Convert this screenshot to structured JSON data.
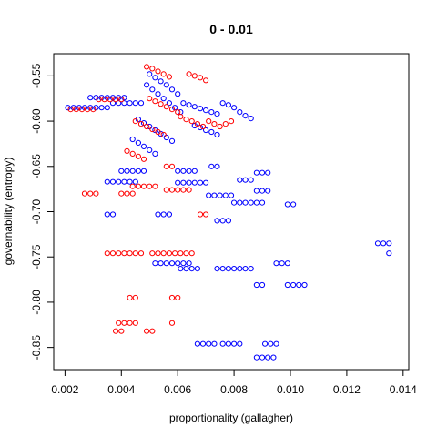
{
  "chart_data": {
    "type": "scatter",
    "title": "0 - 0.01",
    "xlabel": "proportionality (gallagher)",
    "ylabel": "governability (entropy)",
    "xlim": [
      0.0016,
      0.0142
    ],
    "ylim": [
      -0.8745,
      -0.5255
    ],
    "x_ticks": [
      "0.002",
      "0.004",
      "0.006",
      "0.008",
      "0.010",
      "0.012",
      "0.014"
    ],
    "x_tick_values": [
      0.002,
      0.004,
      0.006,
      0.008,
      0.01,
      0.012,
      0.014
    ],
    "y_ticks": [
      "-0.55",
      "-0.60",
      "-0.65",
      "-0.70",
      "-0.75",
      "-0.80",
      "-0.85"
    ],
    "y_tick_values": [
      -0.55,
      -0.6,
      -0.65,
      -0.7,
      -0.75,
      -0.8,
      -0.85
    ],
    "marker": "open-circle",
    "grid": false,
    "series": [
      {
        "color": "#0000ff",
        "points": [
          [
            0.0021,
            -0.585
          ],
          [
            0.0023,
            -0.585
          ],
          [
            0.0025,
            -0.585
          ],
          [
            0.0027,
            -0.585
          ],
          [
            0.0029,
            -0.585
          ],
          [
            0.0031,
            -0.585
          ],
          [
            0.0033,
            -0.585
          ],
          [
            0.0035,
            -0.585
          ],
          [
            0.0029,
            -0.574
          ],
          [
            0.0031,
            -0.574
          ],
          [
            0.0033,
            -0.574
          ],
          [
            0.0035,
            -0.574
          ],
          [
            0.0037,
            -0.574
          ],
          [
            0.0039,
            -0.574
          ],
          [
            0.0041,
            -0.574
          ],
          [
            0.0037,
            -0.58
          ],
          [
            0.0039,
            -0.58
          ],
          [
            0.0041,
            -0.58
          ],
          [
            0.0043,
            -0.58
          ],
          [
            0.0045,
            -0.58
          ],
          [
            0.0047,
            -0.58
          ],
          [
            0.0049,
            -0.56
          ],
          [
            0.0051,
            -0.565
          ],
          [
            0.0053,
            -0.57
          ],
          [
            0.0055,
            -0.575
          ],
          [
            0.0057,
            -0.58
          ],
          [
            0.0059,
            -0.585
          ],
          [
            0.0061,
            -0.59
          ],
          [
            0.005,
            -0.548
          ],
          [
            0.0052,
            -0.552
          ],
          [
            0.0054,
            -0.556
          ],
          [
            0.0056,
            -0.56
          ],
          [
            0.0058,
            -0.565
          ],
          [
            0.006,
            -0.57
          ],
          [
            0.0046,
            -0.598
          ],
          [
            0.0048,
            -0.602
          ],
          [
            0.005,
            -0.606
          ],
          [
            0.0052,
            -0.61
          ],
          [
            0.0054,
            -0.614
          ],
          [
            0.0056,
            -0.618
          ],
          [
            0.0058,
            -0.622
          ],
          [
            0.0044,
            -0.62
          ],
          [
            0.0046,
            -0.624
          ],
          [
            0.0048,
            -0.628
          ],
          [
            0.005,
            -0.632
          ],
          [
            0.0052,
            -0.636
          ],
          [
            0.0062,
            -0.58
          ],
          [
            0.0064,
            -0.582
          ],
          [
            0.0066,
            -0.584
          ],
          [
            0.0068,
            -0.586
          ],
          [
            0.007,
            -0.588
          ],
          [
            0.0072,
            -0.59
          ],
          [
            0.0074,
            -0.592
          ],
          [
            0.0076,
            -0.58
          ],
          [
            0.0078,
            -0.582
          ],
          [
            0.008,
            -0.585
          ],
          [
            0.0082,
            -0.59
          ],
          [
            0.0084,
            -0.594
          ],
          [
            0.0086,
            -0.597
          ],
          [
            0.0066,
            -0.605
          ],
          [
            0.0068,
            -0.607
          ],
          [
            0.007,
            -0.61
          ],
          [
            0.0072,
            -0.612
          ],
          [
            0.0074,
            -0.615
          ],
          [
            0.004,
            -0.655
          ],
          [
            0.0042,
            -0.655
          ],
          [
            0.0044,
            -0.655
          ],
          [
            0.0046,
            -0.655
          ],
          [
            0.0048,
            -0.655
          ],
          [
            0.006,
            -0.655
          ],
          [
            0.0062,
            -0.655
          ],
          [
            0.0064,
            -0.655
          ],
          [
            0.0066,
            -0.655
          ],
          [
            0.0072,
            -0.65
          ],
          [
            0.0074,
            -0.65
          ],
          [
            0.0035,
            -0.667
          ],
          [
            0.0037,
            -0.667
          ],
          [
            0.0039,
            -0.667
          ],
          [
            0.0041,
            -0.667
          ],
          [
            0.0043,
            -0.667
          ],
          [
            0.0045,
            -0.667
          ],
          [
            0.006,
            -0.668
          ],
          [
            0.0062,
            -0.668
          ],
          [
            0.0064,
            -0.668
          ],
          [
            0.0066,
            -0.668
          ],
          [
            0.0068,
            -0.668
          ],
          [
            0.007,
            -0.668
          ],
          [
            0.0071,
            -0.682
          ],
          [
            0.0073,
            -0.682
          ],
          [
            0.0075,
            -0.682
          ],
          [
            0.0077,
            -0.682
          ],
          [
            0.0079,
            -0.682
          ],
          [
            0.0088,
            -0.657
          ],
          [
            0.009,
            -0.657
          ],
          [
            0.0092,
            -0.657
          ],
          [
            0.0088,
            -0.677
          ],
          [
            0.009,
            -0.677
          ],
          [
            0.0092,
            -0.677
          ],
          [
            0.008,
            -0.69
          ],
          [
            0.0082,
            -0.69
          ],
          [
            0.0084,
            -0.69
          ],
          [
            0.0086,
            -0.69
          ],
          [
            0.0088,
            -0.69
          ],
          [
            0.009,
            -0.69
          ],
          [
            0.0082,
            -0.665
          ],
          [
            0.0084,
            -0.665
          ],
          [
            0.0086,
            -0.665
          ],
          [
            0.0099,
            -0.692
          ],
          [
            0.0101,
            -0.692
          ],
          [
            0.0053,
            -0.703
          ],
          [
            0.0055,
            -0.703
          ],
          [
            0.0057,
            -0.703
          ],
          [
            0.0074,
            -0.71
          ],
          [
            0.0076,
            -0.71
          ],
          [
            0.0078,
            -0.71
          ],
          [
            0.0035,
            -0.703
          ],
          [
            0.0037,
            -0.703
          ],
          [
            0.0056,
            -0.757
          ],
          [
            0.0058,
            -0.757
          ],
          [
            0.006,
            -0.757
          ],
          [
            0.0062,
            -0.757
          ],
          [
            0.0064,
            -0.757
          ],
          [
            0.0052,
            -0.757
          ],
          [
            0.0054,
            -0.757
          ],
          [
            0.0061,
            -0.763
          ],
          [
            0.0063,
            -0.763
          ],
          [
            0.0065,
            -0.763
          ],
          [
            0.0067,
            -0.763
          ],
          [
            0.0074,
            -0.763
          ],
          [
            0.0076,
            -0.763
          ],
          [
            0.0078,
            -0.763
          ],
          [
            0.008,
            -0.763
          ],
          [
            0.0082,
            -0.763
          ],
          [
            0.0084,
            -0.763
          ],
          [
            0.0086,
            -0.763
          ],
          [
            0.0095,
            -0.757
          ],
          [
            0.0097,
            -0.757
          ],
          [
            0.0099,
            -0.757
          ],
          [
            0.0088,
            -0.781
          ],
          [
            0.009,
            -0.781
          ],
          [
            0.0099,
            -0.781
          ],
          [
            0.0101,
            -0.781
          ],
          [
            0.0103,
            -0.781
          ],
          [
            0.0105,
            -0.781
          ],
          [
            0.0131,
            -0.735
          ],
          [
            0.0133,
            -0.735
          ],
          [
            0.0135,
            -0.735
          ],
          [
            0.0135,
            -0.746
          ],
          [
            0.0067,
            -0.846
          ],
          [
            0.0069,
            -0.846
          ],
          [
            0.0071,
            -0.846
          ],
          [
            0.0073,
            -0.846
          ],
          [
            0.0076,
            -0.846
          ],
          [
            0.0078,
            -0.846
          ],
          [
            0.008,
            -0.846
          ],
          [
            0.0082,
            -0.846
          ],
          [
            0.0091,
            -0.846
          ],
          [
            0.0093,
            -0.846
          ],
          [
            0.0095,
            -0.846
          ],
          [
            0.0088,
            -0.861
          ],
          [
            0.009,
            -0.861
          ],
          [
            0.0092,
            -0.861
          ],
          [
            0.0094,
            -0.861
          ]
        ]
      },
      {
        "color": "#ff0000",
        "points": [
          [
            0.0022,
            -0.587
          ],
          [
            0.0024,
            -0.587
          ],
          [
            0.0026,
            -0.587
          ],
          [
            0.0028,
            -0.587
          ],
          [
            0.003,
            -0.587
          ],
          [
            0.0032,
            -0.576
          ],
          [
            0.0034,
            -0.576
          ],
          [
            0.0036,
            -0.576
          ],
          [
            0.0038,
            -0.576
          ],
          [
            0.004,
            -0.576
          ],
          [
            0.0049,
            -0.54
          ],
          [
            0.0051,
            -0.542
          ],
          [
            0.0053,
            -0.545
          ],
          [
            0.0055,
            -0.548
          ],
          [
            0.0057,
            -0.551
          ],
          [
            0.005,
            -0.575
          ],
          [
            0.0052,
            -0.578
          ],
          [
            0.0054,
            -0.581
          ],
          [
            0.0056,
            -0.584
          ],
          [
            0.0058,
            -0.587
          ],
          [
            0.006,
            -0.59
          ],
          [
            0.0045,
            -0.6
          ],
          [
            0.0047,
            -0.603
          ],
          [
            0.0049,
            -0.606
          ],
          [
            0.0051,
            -0.609
          ],
          [
            0.0053,
            -0.612
          ],
          [
            0.0055,
            -0.615
          ],
          [
            0.0061,
            -0.595
          ],
          [
            0.0063,
            -0.598
          ],
          [
            0.0065,
            -0.6
          ],
          [
            0.0067,
            -0.603
          ],
          [
            0.0069,
            -0.606
          ],
          [
            0.0071,
            -0.6
          ],
          [
            0.0073,
            -0.603
          ],
          [
            0.0075,
            -0.606
          ],
          [
            0.0077,
            -0.603
          ],
          [
            0.0079,
            -0.6
          ],
          [
            0.0064,
            -0.548
          ],
          [
            0.0066,
            -0.55
          ],
          [
            0.0068,
            -0.552
          ],
          [
            0.007,
            -0.555
          ],
          [
            0.0042,
            -0.633
          ],
          [
            0.0044,
            -0.636
          ],
          [
            0.0046,
            -0.639
          ],
          [
            0.0048,
            -0.642
          ],
          [
            0.0056,
            -0.65
          ],
          [
            0.0058,
            -0.65
          ],
          [
            0.0027,
            -0.68
          ],
          [
            0.0029,
            -0.68
          ],
          [
            0.0031,
            -0.68
          ],
          [
            0.0044,
            -0.672
          ],
          [
            0.0046,
            -0.672
          ],
          [
            0.0048,
            -0.672
          ],
          [
            0.005,
            -0.672
          ],
          [
            0.0052,
            -0.672
          ],
          [
            0.004,
            -0.68
          ],
          [
            0.0042,
            -0.68
          ],
          [
            0.0044,
            -0.68
          ],
          [
            0.0056,
            -0.676
          ],
          [
            0.0058,
            -0.676
          ],
          [
            0.006,
            -0.676
          ],
          [
            0.0062,
            -0.676
          ],
          [
            0.0064,
            -0.676
          ],
          [
            0.0068,
            -0.703
          ],
          [
            0.007,
            -0.703
          ],
          [
            0.0035,
            -0.746
          ],
          [
            0.0037,
            -0.746
          ],
          [
            0.0039,
            -0.746
          ],
          [
            0.0041,
            -0.746
          ],
          [
            0.0043,
            -0.746
          ],
          [
            0.0045,
            -0.746
          ],
          [
            0.0047,
            -0.746
          ],
          [
            0.0051,
            -0.746
          ],
          [
            0.0053,
            -0.746
          ],
          [
            0.0055,
            -0.746
          ],
          [
            0.0057,
            -0.746
          ],
          [
            0.0059,
            -0.746
          ],
          [
            0.0061,
            -0.746
          ],
          [
            0.0063,
            -0.746
          ],
          [
            0.0065,
            -0.746
          ],
          [
            0.0043,
            -0.795
          ],
          [
            0.0045,
            -0.795
          ],
          [
            0.0058,
            -0.795
          ],
          [
            0.006,
            -0.795
          ],
          [
            0.0039,
            -0.823
          ],
          [
            0.0041,
            -0.823
          ],
          [
            0.0043,
            -0.823
          ],
          [
            0.0045,
            -0.823
          ],
          [
            0.0058,
            -0.823
          ],
          [
            0.0038,
            -0.832
          ],
          [
            0.004,
            -0.832
          ],
          [
            0.0049,
            -0.832
          ],
          [
            0.0051,
            -0.832
          ]
        ]
      }
    ]
  }
}
